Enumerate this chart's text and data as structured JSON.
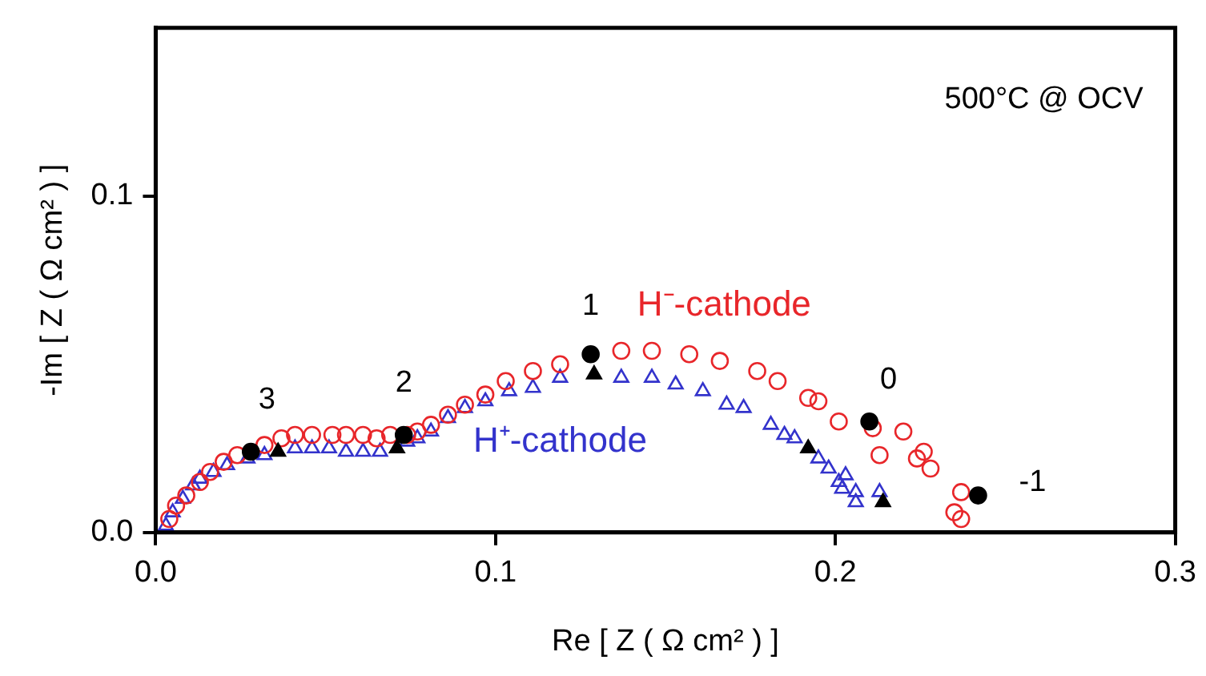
{
  "chart_data": {
    "type": "scatter",
    "xlabel": "Re [ Z ( Ω cm² ) ]",
    "ylabel": "-Im [ Z ( Ω cm² ) ]",
    "xlim": [
      0,
      0.3
    ],
    "ylim": [
      0,
      0.15
    ],
    "xticks": [
      {
        "value": 0,
        "label": "0.0"
      },
      {
        "value": 0.1,
        "label": "0.1"
      },
      {
        "value": 0.2,
        "label": "0.2"
      },
      {
        "value": 0.3,
        "label": "0.3"
      }
    ],
    "yticks": [
      {
        "value": 0,
        "label": "0.0"
      },
      {
        "value": 0.1,
        "label": "0.1"
      }
    ],
    "grid": false,
    "legend": false,
    "series": [
      {
        "name": "H⁻-cathode",
        "color": "#e8262a",
        "marker": "circle",
        "x": [
          0.004,
          0.006,
          0.009,
          0.013,
          0.016,
          0.02,
          0.024,
          0.032,
          0.037,
          0.041,
          0.046,
          0.052,
          0.056,
          0.061,
          0.065,
          0.069,
          0.074,
          0.077,
          0.081,
          0.086,
          0.091,
          0.097,
          0.103,
          0.111,
          0.119,
          0.137,
          0.146,
          0.157,
          0.166,
          0.177,
          0.183,
          0.192,
          0.195,
          0.201,
          0.211,
          0.22,
          0.213,
          0.226,
          0.224,
          0.228,
          0.237,
          0.235,
          0.237
        ],
        "values": [
          0.004,
          0.008,
          0.011,
          0.015,
          0.018,
          0.021,
          0.023,
          0.026,
          0.028,
          0.029,
          0.029,
          0.029,
          0.029,
          0.029,
          0.028,
          0.029,
          0.029,
          0.03,
          0.032,
          0.035,
          0.038,
          0.041,
          0.045,
          0.048,
          0.05,
          0.054,
          0.054,
          0.053,
          0.051,
          0.048,
          0.045,
          0.04,
          0.039,
          0.033,
          0.031,
          0.03,
          0.023,
          0.024,
          0.022,
          0.019,
          0.012,
          0.006,
          0.004
        ]
      },
      {
        "name": "H⁺-cathode",
        "color": "#3333cc",
        "marker": "triangle",
        "x": [
          0.003,
          0.005,
          0.008,
          0.011,
          0.013,
          0.017,
          0.021,
          0.027,
          0.032,
          0.041,
          0.046,
          0.051,
          0.056,
          0.061,
          0.066,
          0.074,
          0.077,
          0.081,
          0.086,
          0.091,
          0.097,
          0.104,
          0.111,
          0.119,
          0.137,
          0.146,
          0.153,
          0.161,
          0.168,
          0.173,
          0.181,
          0.185,
          0.188,
          0.195,
          0.198,
          0.201,
          0.203,
          0.202,
          0.206,
          0.206,
          0.213
        ],
        "values": [
          0.002,
          0.006,
          0.01,
          0.014,
          0.016,
          0.018,
          0.02,
          0.022,
          0.023,
          0.025,
          0.025,
          0.025,
          0.024,
          0.024,
          0.024,
          0.027,
          0.028,
          0.03,
          0.034,
          0.037,
          0.039,
          0.042,
          0.043,
          0.046,
          0.046,
          0.046,
          0.044,
          0.042,
          0.038,
          0.037,
          0.032,
          0.029,
          0.028,
          0.022,
          0.019,
          0.015,
          0.017,
          0.013,
          0.012,
          0.009,
          0.012
        ]
      },
      {
        "color": "#000000",
        "marker": "circle",
        "x": [
          0.028,
          0.073,
          0.128,
          0.21,
          0.242
        ],
        "values": [
          0.024,
          0.029,
          0.053,
          0.033,
          0.011
        ]
      },
      {
        "color": "#000000",
        "marker": "triangle",
        "x": [
          0.036,
          0.071,
          0.129,
          0.192,
          0.214
        ],
        "values": [
          0.024,
          0.025,
          0.047,
          0.025,
          0.009
        ]
      }
    ],
    "annotations": [
      "500°C @ OCV",
      {
        "text": "3",
        "x": 0.028,
        "y": 0.024
      },
      {
        "text": "2",
        "x": 0.073,
        "y": 0.029
      },
      {
        "text": "1",
        "x": 0.128,
        "y": 0.053
      },
      {
        "text": "0",
        "x": 0.21,
        "y": 0.033
      },
      {
        "text": "-1",
        "x": 0.242,
        "y": 0.011
      }
    ]
  }
}
